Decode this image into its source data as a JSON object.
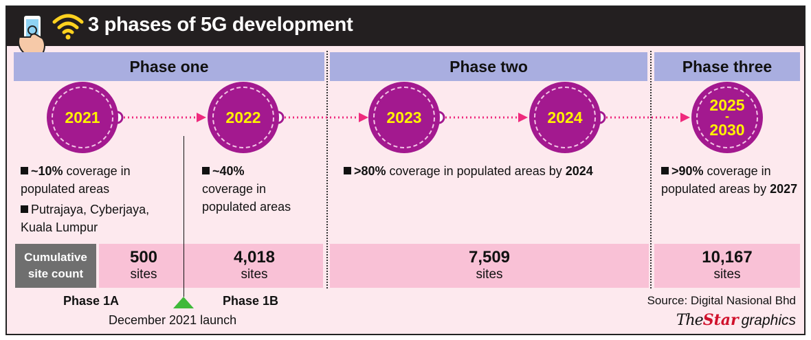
{
  "title": "3 phases of 5G development",
  "colors": {
    "header_bg": "#231f20",
    "phase_header": "#a9aee0",
    "circle": "#a3198f",
    "year_text": "#fff200",
    "arrow": "#ef2a7d",
    "count_box": "#f9c1d6",
    "label_box": "#6f6f6f",
    "launch_marker": "#3fb93a",
    "brand_star": "#d0112b"
  },
  "icons": [
    "smartphone-hand-icon",
    "wifi-icon"
  ],
  "phases": [
    {
      "label": "Phase one"
    },
    {
      "label": "Phase two"
    },
    {
      "label": "Phase three"
    }
  ],
  "years": [
    "2021",
    "2022",
    "2023",
    "2024"
  ],
  "final_years": {
    "start": "2025",
    "sep": "-",
    "end": "2030"
  },
  "descriptions": {
    "y2021_a_bold": "~10%",
    "y2021_a_rest": " coverage in populated areas",
    "y2021_b": "Putrajaya, Cyberjaya, Kuala Lumpur",
    "y2022_bold": "~40%",
    "y2022_rest": "coverage in populated areas",
    "phase2_bold": ">80%",
    "phase2_rest": " coverage in populated areas by ",
    "phase2_year": "2024",
    "phase3_bold": ">90%",
    "phase3_rest": " coverage in populated areas by ",
    "phase3_year": "2027"
  },
  "cumulative": {
    "label": "Cumulative site count",
    "unit": "sites",
    "counts": [
      "500",
      "4,018",
      "7,509",
      "10,167"
    ]
  },
  "footer": {
    "phase1a": "Phase 1A",
    "phase1b": "Phase 1B",
    "launch": "December 2021 launch",
    "source": "Source: Digital Nasional Bhd",
    "brand_the": "The",
    "brand_star": "Star",
    "brand_graphics": "graphics"
  }
}
